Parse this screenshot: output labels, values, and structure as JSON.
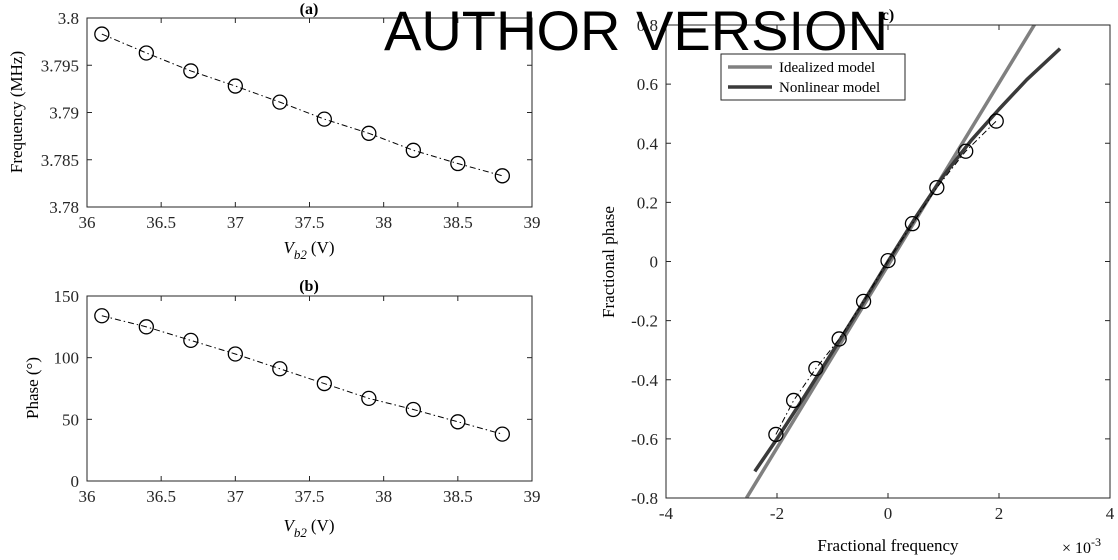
{
  "watermark": "AUTHOR VERSION",
  "chart_data": [
    {
      "id": "a",
      "panel_label": "(a)",
      "type": "scatter",
      "xlabel_main": "V",
      "xlabel_sub": "b2",
      "xlabel_unit": "(V)",
      "ylabel": "Frequency (MHz)",
      "xlim": [
        36,
        39
      ],
      "ylim": [
        3.78,
        3.8
      ],
      "xticks": [
        36,
        36.5,
        37,
        37.5,
        38,
        38.5,
        39
      ],
      "xtick_labels": [
        "36",
        "36.5",
        "37",
        "37.5",
        "38",
        "38.5",
        "39"
      ],
      "yticks": [
        3.78,
        3.785,
        3.79,
        3.795,
        3.8
      ],
      "ytick_labels": [
        "3.78",
        "3.785",
        "3.79",
        "3.795",
        "3.8"
      ],
      "marker": "open-circle",
      "line_style": "dash-dot",
      "x": [
        36.1,
        36.4,
        36.7,
        37.0,
        37.3,
        37.6,
        37.9,
        38.2,
        38.5,
        38.8
      ],
      "y": [
        3.7983,
        3.7963,
        3.7944,
        3.7928,
        3.7911,
        3.7893,
        3.7878,
        3.786,
        3.7846,
        3.7833
      ]
    },
    {
      "id": "b",
      "panel_label": "(b)",
      "type": "scatter",
      "xlabel_main": "V",
      "xlabel_sub": "b2",
      "xlabel_unit": "(V)",
      "ylabel": "Phase (°)",
      "xlim": [
        36,
        39
      ],
      "ylim": [
        0,
        150
      ],
      "xticks": [
        36,
        36.5,
        37,
        37.5,
        38,
        38.5,
        39
      ],
      "xtick_labels": [
        "36",
        "36.5",
        "37",
        "37.5",
        "38",
        "38.5",
        "39"
      ],
      "yticks": [
        0,
        50,
        100,
        150
      ],
      "ytick_labels": [
        "0",
        "50",
        "100",
        "150"
      ],
      "marker": "open-circle",
      "line_style": "dash-dot",
      "x": [
        36.1,
        36.4,
        36.7,
        37.0,
        37.3,
        37.6,
        37.9,
        38.2,
        38.5,
        38.8
      ],
      "y": [
        134,
        125,
        114,
        103,
        91,
        79,
        67,
        58,
        48,
        38
      ]
    },
    {
      "id": "c",
      "panel_label": "c)",
      "type": "line",
      "xlabel": "Fractional frequency",
      "x_multiplier_base": "× 10",
      "x_multiplier_exp": "-3",
      "ylabel": "Fractional phase",
      "xlim": [
        -4,
        4
      ],
      "ylim": [
        -0.8,
        0.8
      ],
      "xticks": [
        -4,
        -2,
        0,
        2,
        4
      ],
      "xtick_labels": [
        "-4",
        "-2",
        "0",
        "2",
        "4"
      ],
      "yticks": [
        -0.8,
        -0.6,
        -0.4,
        -0.2,
        0,
        0.2,
        0.4,
        0.6,
        0.8
      ],
      "ytick_labels": [
        "-0.8",
        "-0.6",
        "-0.4",
        "-0.2",
        "0",
        "0.2",
        "0.4",
        "0.6",
        "0.8"
      ],
      "legend_position": "top-left",
      "series": [
        {
          "name": "Idealized model",
          "color": "#808080",
          "x": [
            -2.55,
            2.7
          ],
          "y": [
            -0.8,
            0.82
          ]
        },
        {
          "name": "Nonlinear model",
          "color": "#3a3a3a",
          "x": [
            -2.4,
            -2.0,
            -1.5,
            -1.0,
            -0.5,
            0.0,
            0.5,
            1.0,
            1.5,
            2.0,
            2.5,
            3.1
          ],
          "y": [
            -0.71,
            -0.6,
            -0.455,
            -0.305,
            -0.155,
            0.0,
            0.15,
            0.29,
            0.41,
            0.515,
            0.615,
            0.72
          ]
        },
        {
          "name": "",
          "marker": "open-circle",
          "line_style": "dash-dot",
          "color": "#000000",
          "x": [
            -2.02,
            -1.7,
            -1.3,
            -0.88,
            -0.44,
            0.0,
            0.44,
            0.88,
            1.4,
            1.95
          ],
          "y": [
            -0.585,
            -0.47,
            -0.362,
            -0.262,
            -0.135,
            0.003,
            0.128,
            0.25,
            0.373,
            0.475
          ]
        }
      ]
    }
  ]
}
